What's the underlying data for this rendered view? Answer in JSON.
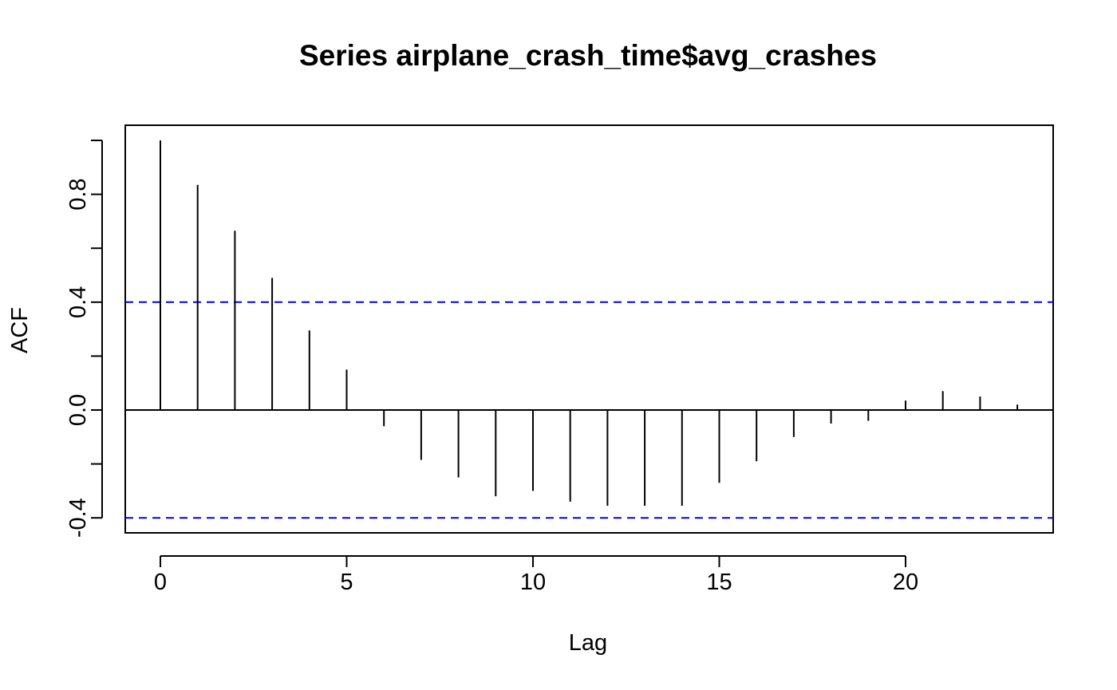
{
  "chart_data": {
    "type": "bar",
    "title": "Series  airplane_crash_time$avg_crashes",
    "xlabel": "Lag",
    "ylabel": "ACF",
    "x": [
      0,
      1,
      2,
      3,
      4,
      5,
      6,
      7,
      8,
      9,
      10,
      11,
      12,
      13,
      14,
      15,
      16,
      17,
      18,
      19,
      20,
      21,
      22,
      23
    ],
    "values": [
      1.0,
      0.835,
      0.665,
      0.49,
      0.295,
      0.15,
      -0.06,
      -0.185,
      -0.25,
      -0.32,
      -0.3,
      -0.34,
      -0.355,
      -0.355,
      -0.355,
      -0.27,
      -0.19,
      -0.1,
      -0.05,
      -0.04,
      0.035,
      0.07,
      0.05,
      0.02
    ],
    "xlim": [
      -0.95,
      23.95
    ],
    "ylim": [
      -0.455,
      1.0
    ],
    "x_ticks": [
      0,
      5,
      10,
      15,
      20
    ],
    "x_tick_labels": [
      "0",
      "5",
      "10",
      "15",
      "20"
    ],
    "y_ticks": [
      -0.4,
      -0.2,
      0.0,
      0.2,
      0.4,
      0.6,
      0.8,
      1.0
    ],
    "y_tick_labels": [
      {
        "value": -0.4,
        "label": "-0.4"
      },
      {
        "value": 0.0,
        "label": "0.0"
      },
      {
        "value": 0.4,
        "label": "0.4"
      },
      {
        "value": 0.8,
        "label": "0.8"
      }
    ],
    "confidence_bounds": [
      0.4,
      -0.4
    ],
    "confidence_color": "#0000ff",
    "bar_color": "#000000",
    "grid": false,
    "legend": "none"
  }
}
